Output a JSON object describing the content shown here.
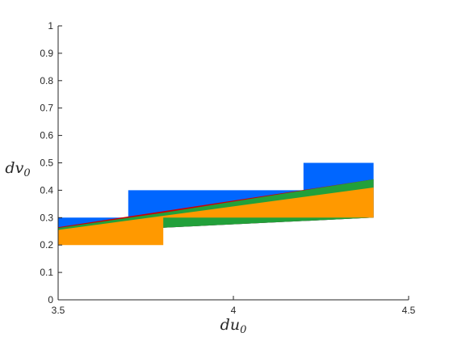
{
  "chart_data": {
    "type": "area",
    "xlabel": "du",
    "xlabel_sub": "0",
    "ylabel": "dv",
    "ylabel_sub": "0",
    "xlim": [
      3.5,
      4.5
    ],
    "ylim": [
      0,
      1
    ],
    "xticks": [
      "3.5",
      "4",
      "4.5"
    ],
    "yticks": [
      "0",
      "0.1",
      "0.2",
      "0.3",
      "0.4",
      "0.5",
      "0.6",
      "0.7",
      "0.8",
      "0.9",
      "1"
    ],
    "grid": false,
    "regions": [
      {
        "color": "#0066ff",
        "polygon": [
          [
            3.5,
            0.3
          ],
          [
            3.7,
            0.3
          ],
          [
            3.7,
            0.4
          ],
          [
            4.2,
            0.4
          ],
          [
            4.2,
            0.5
          ],
          [
            4.4,
            0.5
          ],
          [
            4.4,
            0.3
          ],
          [
            3.5,
            0.245
          ]
        ]
      },
      {
        "color": "#cc0000",
        "polygon": [
          [
            3.5,
            0.265
          ],
          [
            4.4,
            0.44
          ],
          [
            4.4,
            0.3
          ],
          [
            3.5,
            0.245
          ]
        ]
      },
      {
        "color": "#22a03a",
        "polygon": [
          [
            3.5,
            0.262
          ],
          [
            3.66,
            0.292
          ],
          [
            3.8,
            0.318
          ],
          [
            4.4,
            0.44
          ],
          [
            4.4,
            0.3
          ],
          [
            3.5,
            0.245
          ]
        ]
      },
      {
        "color": "#ff9900",
        "polygon": [
          [
            3.5,
            0.255
          ],
          [
            4.4,
            0.41
          ],
          [
            4.4,
            0.3
          ],
          [
            3.8,
            0.3
          ],
          [
            3.8,
            0.2
          ],
          [
            3.5,
            0.2
          ]
        ]
      }
    ]
  }
}
